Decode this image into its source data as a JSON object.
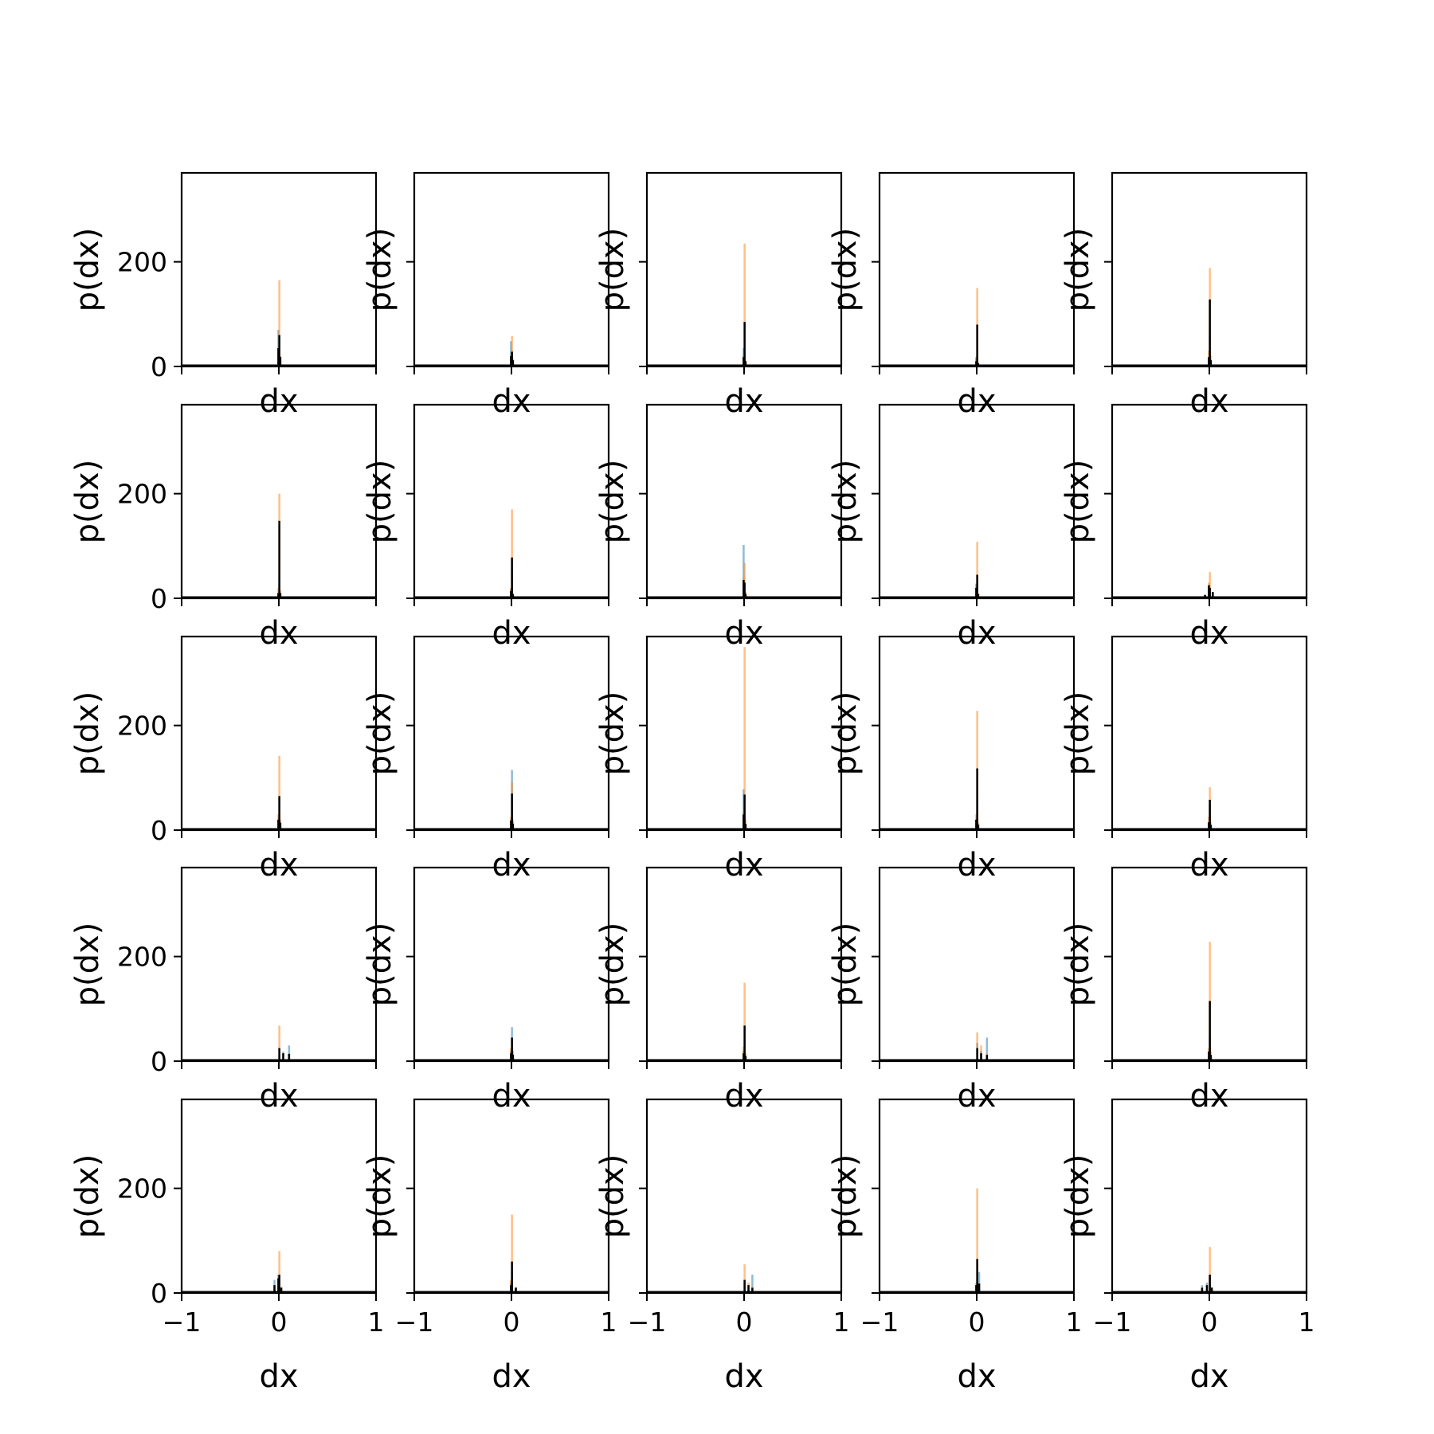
{
  "colors": {
    "blue": "#1f77b4",
    "orange": "#ff7f0e",
    "black": "#000000"
  },
  "chart_data": {
    "type": "bar",
    "layout": "5x5 grid of histograms",
    "xlabel": "dx",
    "ylabel": "p(dx)",
    "xlim": [
      -1,
      1
    ],
    "ylim": [
      0,
      370
    ],
    "x_ticks": [
      "−1",
      "0",
      "1"
    ],
    "y_ticks": [
      "0",
      "200"
    ],
    "grid": false,
    "panels": [
      {
        "bars": [
          {
            "x": -0.01,
            "blue": 70,
            "orange": 25,
            "black": 35
          },
          {
            "x": 0.0,
            "blue": 40,
            "orange": 165,
            "black": 60
          },
          {
            "x": 0.01,
            "blue": 15,
            "orange": 20,
            "black": 18
          }
        ]
      },
      {
        "bars": [
          {
            "x": -0.01,
            "blue": 48,
            "orange": 22,
            "black": 20
          },
          {
            "x": 0.0,
            "blue": 30,
            "orange": 58,
            "black": 28
          },
          {
            "x": 0.01,
            "blue": 12,
            "orange": 15,
            "black": 12
          }
        ]
      },
      {
        "bars": [
          {
            "x": -0.01,
            "blue": 35,
            "orange": 20,
            "black": 18
          },
          {
            "x": 0.0,
            "blue": 25,
            "orange": 235,
            "black": 85
          },
          {
            "x": 0.01,
            "blue": 8,
            "orange": 12,
            "black": 10
          }
        ]
      },
      {
        "bars": [
          {
            "x": -0.01,
            "blue": 18,
            "orange": 15,
            "black": 10
          },
          {
            "x": 0.0,
            "blue": 20,
            "orange": 150,
            "black": 80
          },
          {
            "x": 0.01,
            "blue": 5,
            "orange": 8,
            "black": 6
          }
        ]
      },
      {
        "bars": [
          {
            "x": -0.01,
            "blue": 15,
            "orange": 30,
            "black": 18
          },
          {
            "x": 0.0,
            "blue": 60,
            "orange": 188,
            "black": 128
          },
          {
            "x": 0.01,
            "blue": 10,
            "orange": 20,
            "black": 12
          }
        ]
      },
      {
        "bars": [
          {
            "x": -0.01,
            "blue": 10,
            "orange": 20,
            "black": 10
          },
          {
            "x": 0.0,
            "blue": 40,
            "orange": 200,
            "black": 148
          },
          {
            "x": 0.01,
            "blue": 8,
            "orange": 15,
            "black": 10
          }
        ]
      },
      {
        "bars": [
          {
            "x": -0.01,
            "blue": 18,
            "orange": 20,
            "black": 14
          },
          {
            "x": 0.0,
            "blue": 50,
            "orange": 170,
            "black": 78
          },
          {
            "x": 0.01,
            "blue": 6,
            "orange": 10,
            "black": 8
          }
        ]
      },
      {
        "bars": [
          {
            "x": -0.01,
            "blue": 102,
            "orange": 40,
            "black": 35
          },
          {
            "x": 0.0,
            "blue": 20,
            "orange": 68,
            "black": 30
          },
          {
            "x": 0.01,
            "blue": 10,
            "orange": 12,
            "black": 8
          }
        ]
      },
      {
        "bars": [
          {
            "x": -0.01,
            "blue": 28,
            "orange": 18,
            "black": 20
          },
          {
            "x": 0.0,
            "blue": 30,
            "orange": 108,
            "black": 45
          },
          {
            "x": 0.01,
            "blue": 8,
            "orange": 10,
            "black": 8
          }
        ]
      },
      {
        "bars": [
          {
            "x": -0.05,
            "blue": 8,
            "orange": 6,
            "black": 6
          },
          {
            "x": -0.01,
            "blue": 20,
            "orange": 30,
            "black": 25
          },
          {
            "x": 0.0,
            "blue": 18,
            "orange": 50,
            "black": 20
          },
          {
            "x": 0.03,
            "blue": 10,
            "orange": 12,
            "black": 12
          }
        ]
      },
      {
        "bars": [
          {
            "x": -0.01,
            "blue": 20,
            "orange": 30,
            "black": 20
          },
          {
            "x": 0.0,
            "blue": 60,
            "orange": 142,
            "black": 65
          },
          {
            "x": 0.01,
            "blue": 15,
            "orange": 20,
            "black": 14
          }
        ]
      },
      {
        "bars": [
          {
            "x": -0.01,
            "blue": 20,
            "orange": 25,
            "black": 18
          },
          {
            "x": 0.0,
            "blue": 115,
            "orange": 92,
            "black": 70
          },
          {
            "x": 0.01,
            "blue": 15,
            "orange": 20,
            "black": 12
          }
        ]
      },
      {
        "bars": [
          {
            "x": -0.01,
            "blue": 78,
            "orange": 35,
            "black": 30
          },
          {
            "x": 0.0,
            "blue": 30,
            "orange": 350,
            "black": 68
          },
          {
            "x": 0.01,
            "blue": 10,
            "orange": 20,
            "black": 12
          }
        ]
      },
      {
        "bars": [
          {
            "x": -0.01,
            "blue": 20,
            "orange": 30,
            "black": 20
          },
          {
            "x": 0.0,
            "blue": 60,
            "orange": 228,
            "black": 118
          },
          {
            "x": 0.01,
            "blue": 12,
            "orange": 15,
            "black": 10
          }
        ]
      },
      {
        "bars": [
          {
            "x": -0.01,
            "blue": 15,
            "orange": 25,
            "black": 15
          },
          {
            "x": 0.0,
            "blue": 50,
            "orange": 82,
            "black": 58
          },
          {
            "x": 0.01,
            "blue": 10,
            "orange": 15,
            "black": 10
          }
        ]
      },
      {
        "bars": [
          {
            "x": 0.0,
            "blue": 20,
            "orange": 68,
            "black": 25
          },
          {
            "x": 0.04,
            "blue": 18,
            "orange": 15,
            "black": 15
          },
          {
            "x": 0.1,
            "blue": 30,
            "orange": 12,
            "black": 14
          }
        ]
      },
      {
        "bars": [
          {
            "x": -0.01,
            "blue": 20,
            "orange": 25,
            "black": 15
          },
          {
            "x": 0.0,
            "blue": 65,
            "orange": 40,
            "black": 45
          },
          {
            "x": 0.01,
            "blue": 15,
            "orange": 20,
            "black": 12
          }
        ]
      },
      {
        "bars": [
          {
            "x": -0.01,
            "blue": 20,
            "orange": 28,
            "black": 15
          },
          {
            "x": 0.0,
            "blue": 40,
            "orange": 150,
            "black": 68
          },
          {
            "x": 0.01,
            "blue": 10,
            "orange": 15,
            "black": 10
          }
        ]
      },
      {
        "bars": [
          {
            "x": 0.0,
            "blue": 35,
            "orange": 55,
            "black": 25
          },
          {
            "x": 0.04,
            "blue": 20,
            "orange": 30,
            "black": 15
          },
          {
            "x": 0.1,
            "blue": 45,
            "orange": 15,
            "black": 12
          }
        ]
      },
      {
        "bars": [
          {
            "x": -0.01,
            "blue": 20,
            "orange": 25,
            "black": 18
          },
          {
            "x": 0.0,
            "blue": 50,
            "orange": 228,
            "black": 115
          },
          {
            "x": 0.01,
            "blue": 10,
            "orange": 18,
            "black": 12
          }
        ]
      },
      {
        "bars": [
          {
            "x": -0.05,
            "blue": 25,
            "orange": 15,
            "black": 15
          },
          {
            "x": -0.01,
            "blue": 35,
            "orange": 20,
            "black": 28
          },
          {
            "x": 0.0,
            "blue": 25,
            "orange": 80,
            "black": 35
          },
          {
            "x": 0.02,
            "blue": 10,
            "orange": 12,
            "black": 10
          }
        ]
      },
      {
        "bars": [
          {
            "x": -0.01,
            "blue": 20,
            "orange": 25,
            "black": 15
          },
          {
            "x": 0.0,
            "blue": 40,
            "orange": 150,
            "black": 60
          },
          {
            "x": 0.04,
            "blue": 10,
            "orange": 12,
            "black": 10
          }
        ]
      },
      {
        "bars": [
          {
            "x": 0.0,
            "blue": 20,
            "orange": 55,
            "black": 25
          },
          {
            "x": 0.04,
            "blue": 15,
            "orange": 20,
            "black": 15
          },
          {
            "x": 0.08,
            "blue": 35,
            "orange": 12,
            "black": 10
          }
        ]
      },
      {
        "bars": [
          {
            "x": -0.01,
            "blue": 15,
            "orange": 20,
            "black": 15
          },
          {
            "x": 0.0,
            "blue": 25,
            "orange": 200,
            "black": 65
          },
          {
            "x": 0.02,
            "blue": 40,
            "orange": 15,
            "black": 18
          }
        ]
      },
      {
        "bars": [
          {
            "x": -0.08,
            "blue": 15,
            "orange": 10,
            "black": 10
          },
          {
            "x": -0.03,
            "blue": 20,
            "orange": 15,
            "black": 15
          },
          {
            "x": 0.0,
            "blue": 30,
            "orange": 88,
            "black": 35
          },
          {
            "x": 0.02,
            "blue": 10,
            "orange": 12,
            "black": 10
          }
        ]
      }
    ]
  }
}
